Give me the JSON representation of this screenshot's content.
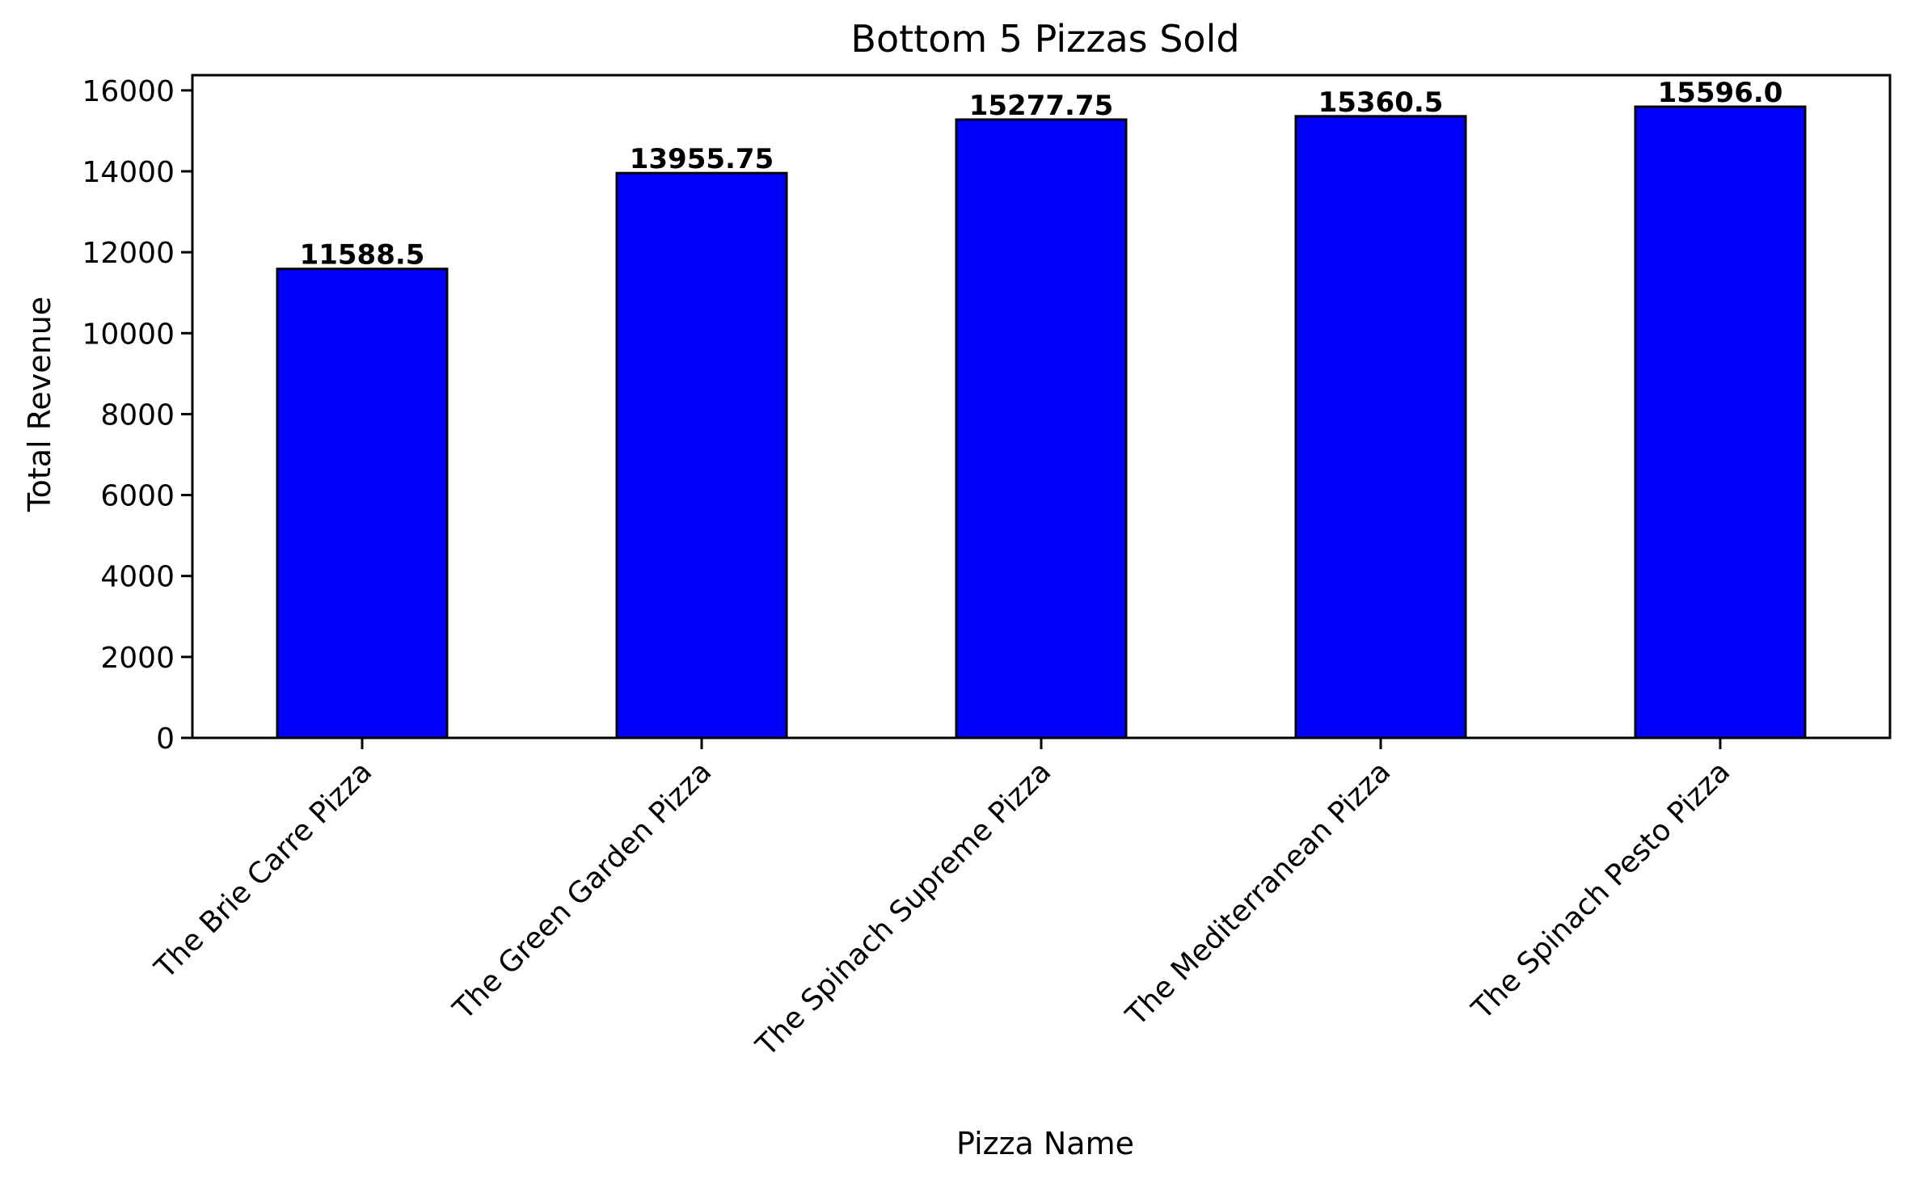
{
  "chart_data": {
    "type": "bar",
    "title": "Bottom 5 Pizzas Sold",
    "xlabel": "Pizza Name",
    "ylabel": "Total Revenue",
    "categories": [
      "The Brie Carre Pizza",
      "The Green Garden Pizza",
      "The Spinach Supreme Pizza",
      "The Mediterranean Pizza",
      "The Spinach Pesto Pizza"
    ],
    "values": [
      11588.5,
      13955.75,
      15277.75,
      15360.5,
      15596.0
    ],
    "data_labels": [
      "11588.5",
      "13955.75",
      "15277.75",
      "15360.5",
      "15596.0"
    ],
    "yticks": [
      0,
      2000,
      4000,
      6000,
      8000,
      10000,
      12000,
      14000,
      16000
    ],
    "ylim": [
      0,
      16375.8
    ],
    "grid": false,
    "legend": "none",
    "colors": {
      "bar_fill": "#0000ff",
      "bar_edge": "#000000"
    }
  }
}
